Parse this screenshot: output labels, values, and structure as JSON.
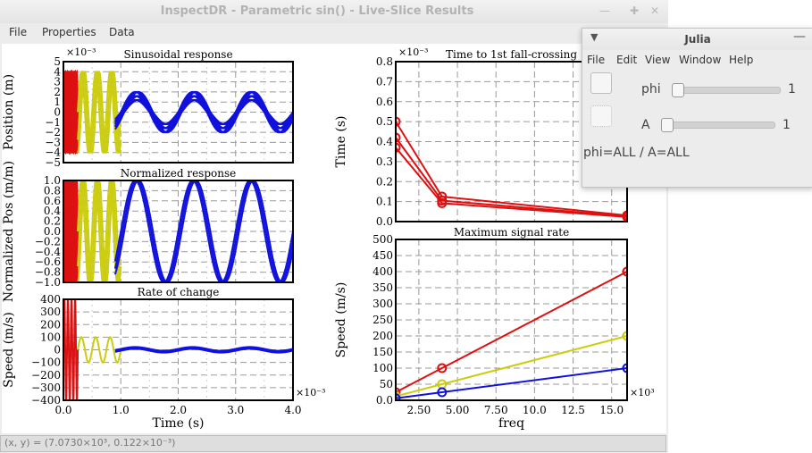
{
  "window": {
    "title": "InspectDR - Parametric sin() - Live-Slice Results",
    "menu": [
      "File",
      "Properties",
      "Data"
    ]
  },
  "status": {
    "text": "(x, y) = (7.0730×10³, 0.122×10⁻³)"
  },
  "julia": {
    "title": "Julia",
    "menu": [
      "File",
      "Edit",
      "View",
      "Window",
      "Help"
    ],
    "sliders": [
      {
        "label": "phi",
        "value": "1"
      },
      {
        "label": "A",
        "value": "1"
      }
    ],
    "status": "phi=ALL / A=ALL"
  },
  "chart_data": [
    {
      "type": "line",
      "title": "Sinusoidal response",
      "xlabel": "",
      "ylabel": "Position (m)",
      "y_multiplier": "×10⁻³",
      "xlim": [
        0,
        4.0
      ],
      "ylim": [
        -5,
        5
      ],
      "yticks": [
        "5",
        "4",
        "3",
        "2",
        "1",
        "0",
        "−1",
        "−2",
        "−3",
        "−4",
        "−5"
      ],
      "series": [
        {
          "color": "#dd1111",
          "freq_khz": 16,
          "amplitudes": [
            4.0
          ],
          "x_range": [
            0,
            0.25
          ]
        },
        {
          "color": "#cccc11",
          "freq_khz": 4,
          "amplitudes": [
            4.0
          ],
          "x_range": [
            0.25,
            1.0
          ]
        },
        {
          "color": "#1111dd",
          "freq_khz": 1,
          "amplitudes": [
            1.2,
            1.6,
            2.0
          ],
          "x_range": [
            0.9,
            4.0
          ]
        }
      ]
    },
    {
      "type": "line",
      "title": "Normalized response",
      "xlabel": "",
      "ylabel": "Normalized Pos (m/m)",
      "xlim": [
        0,
        4.0
      ],
      "ylim": [
        -1.0,
        1.0
      ],
      "yticks": [
        "1.0",
        "0.8",
        "0.6",
        "0.4",
        "0.2",
        "0.0",
        "−0.2",
        "−0.4",
        "−0.6",
        "−0.8",
        "−1.0"
      ],
      "series": [
        {
          "color": "#dd1111",
          "freq_khz": 16,
          "amplitudes": [
            1.0
          ],
          "x_range": [
            0,
            0.25
          ]
        },
        {
          "color": "#cccc11",
          "freq_khz": 4,
          "amplitudes": [
            1.0
          ],
          "x_range": [
            0.25,
            1.0
          ]
        },
        {
          "color": "#1111dd",
          "freq_khz": 1,
          "amplitudes": [
            1.0
          ],
          "x_range": [
            0.9,
            4.0
          ]
        }
      ]
    },
    {
      "type": "line",
      "title": "Rate of change",
      "xlabel": "Time (s)",
      "ylabel": "Speed (m/s)",
      "x_multiplier": "×10⁻³",
      "xlim": [
        0,
        4.0
      ],
      "ylim": [
        -400,
        400
      ],
      "xticks": [
        "0.0",
        "1.0",
        "2.0",
        "3.0",
        "4.0"
      ],
      "yticks": [
        "400",
        "300",
        "200",
        "100",
        "0",
        "−100",
        "−200",
        "−300",
        "−400"
      ],
      "series": [
        {
          "color": "#dd1111",
          "freq_khz": 16,
          "amplitude": 400,
          "x_range": [
            0,
            0.25
          ]
        },
        {
          "color": "#cccc11",
          "freq_khz": 4,
          "amplitude": 100,
          "x_range": [
            0.25,
            1.0
          ]
        },
        {
          "color": "#1111dd",
          "freq_khz": 1,
          "amplitude": 15,
          "x_range": [
            0.9,
            4.0
          ]
        }
      ]
    },
    {
      "type": "line",
      "title": "Time to 1st fall-crossing",
      "xlabel": "",
      "ylabel": "Time (s)",
      "y_multiplier": "×10⁻³",
      "xlim": [
        1,
        16
      ],
      "ylim": [
        0,
        0.8
      ],
      "yticks": [
        "0.8",
        "0.7",
        "0.6",
        "0.5",
        "0.4",
        "0.3",
        "0.2",
        "0.1",
        "0.0"
      ],
      "x": [
        1,
        4,
        16
      ],
      "series": [
        {
          "color": "#dd1111",
          "values": [
            0.5,
            0.125,
            0.031
          ]
        },
        {
          "color": "#dd1111",
          "values": [
            0.42,
            0.105,
            0.026
          ]
        },
        {
          "color": "#dd1111",
          "values": [
            0.37,
            0.092,
            0.023
          ]
        }
      ]
    },
    {
      "type": "line",
      "title": "Maximum signal rate",
      "xlabel": "freq",
      "ylabel": "Speed (m/s)",
      "x_multiplier": "×10³",
      "xlim": [
        1,
        16
      ],
      "ylim": [
        0,
        500
      ],
      "xticks": [
        "2.50",
        "5.00",
        "7.50",
        "10.0",
        "12.5",
        "15.0"
      ],
      "yticks": [
        "500",
        "450",
        "400",
        "350",
        "300",
        "250",
        "200",
        "150",
        "100",
        "50",
        "0.0"
      ],
      "x": [
        1,
        4,
        16
      ],
      "series": [
        {
          "color": "#dd1111",
          "values": [
            25,
            100,
            400
          ]
        },
        {
          "color": "#cccc11",
          "values": [
            12.5,
            50,
            200
          ]
        },
        {
          "color": "#1111dd",
          "values": [
            6.25,
            25,
            100
          ]
        }
      ]
    }
  ]
}
